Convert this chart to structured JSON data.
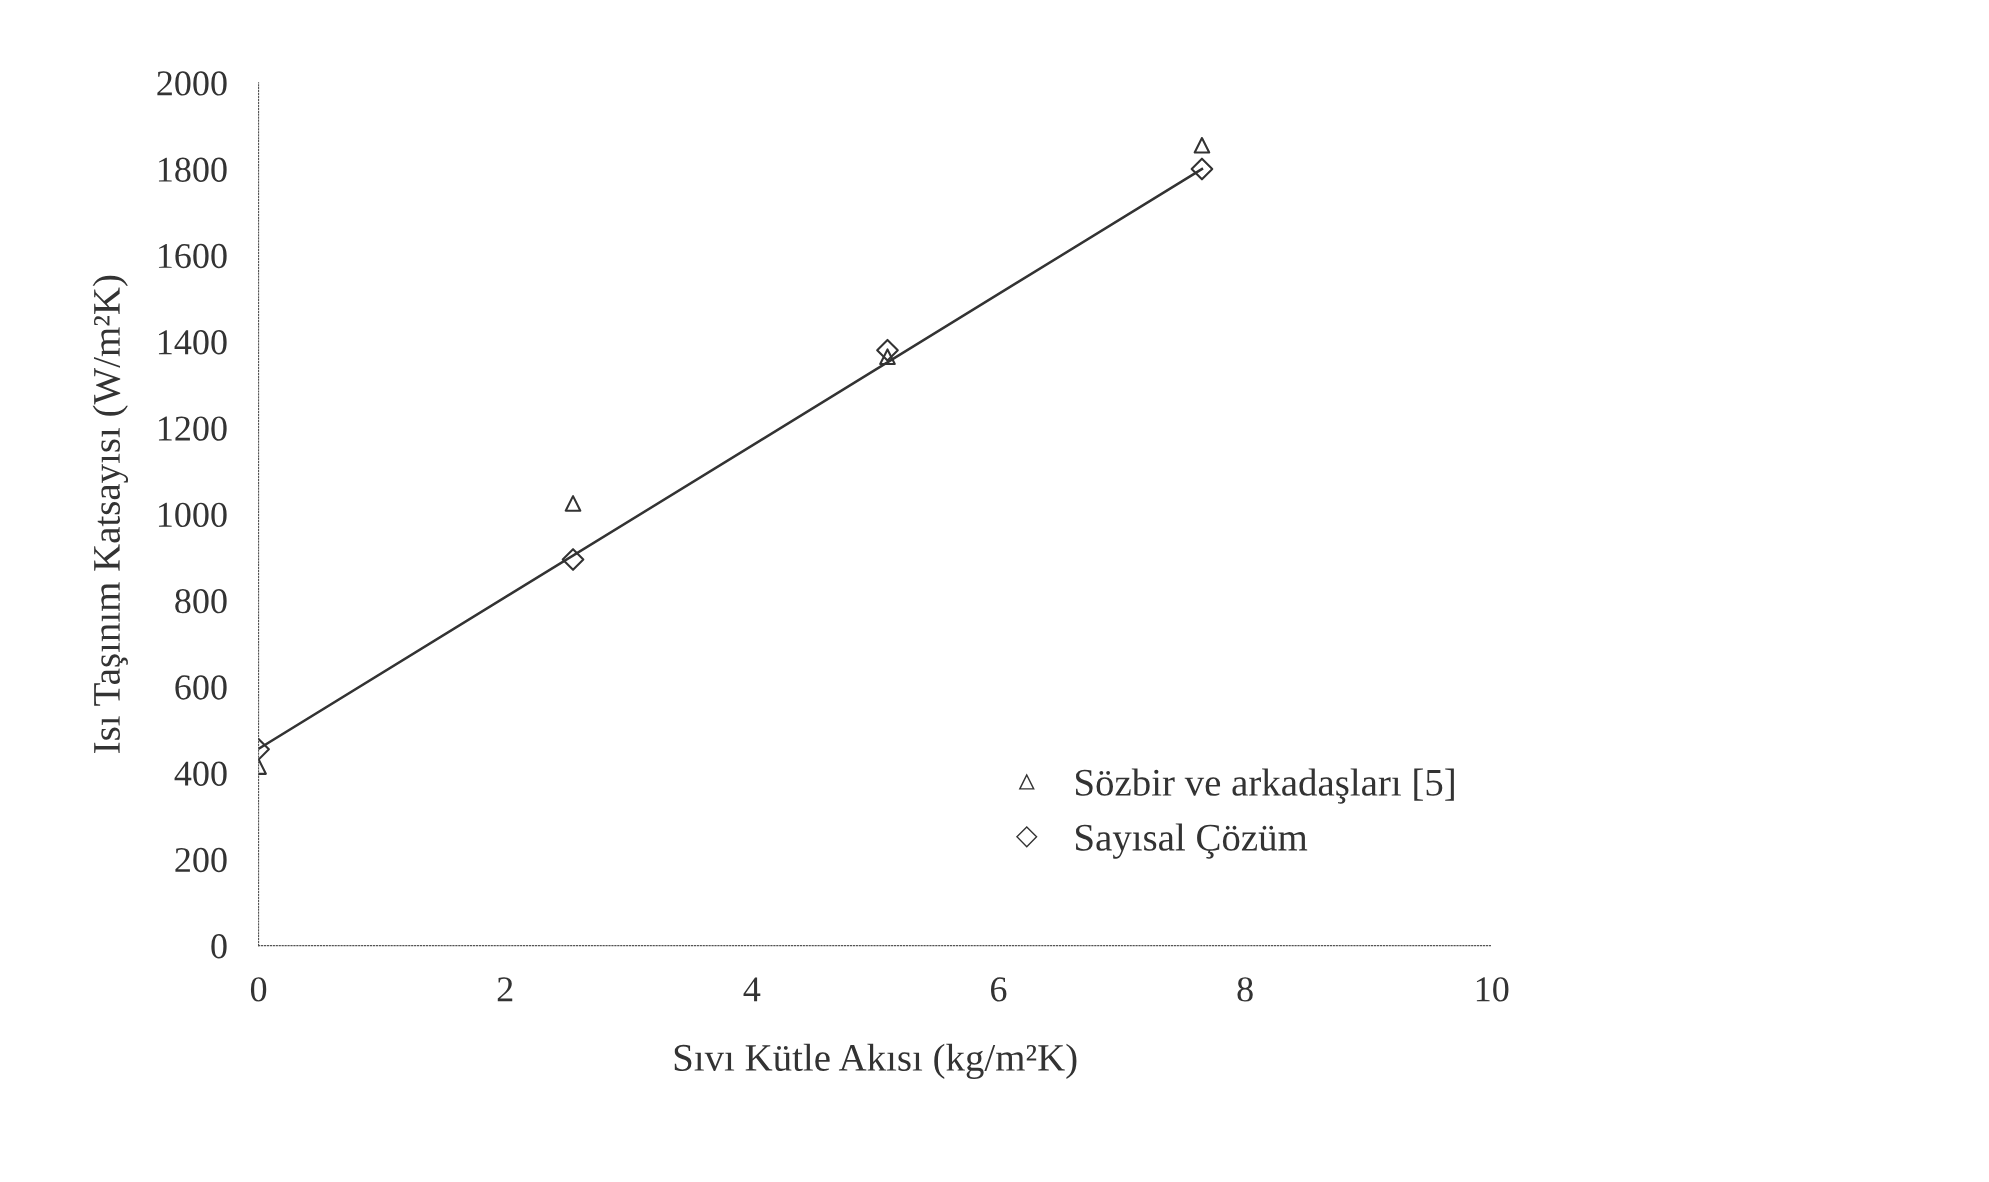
{
  "chart_data": {
    "type": "scatter",
    "xlabel": "Sıvı Kütle Akısı (kg/m²K)",
    "ylabel": "Isı Taşınım Katsayısı (W/m²K)",
    "xlim": [
      0,
      10
    ],
    "xticks": [
      0,
      2,
      4,
      6,
      8,
      10
    ],
    "ylim": [
      0,
      2000
    ],
    "yticks": [
      0,
      200,
      400,
      600,
      800,
      1000,
      1200,
      1400,
      1600,
      1800,
      2000
    ],
    "grid": false,
    "legend": "bottom right",
    "series": [
      {
        "name": "Sözbir ve arkadaşları [5]",
        "color": "#333333",
        "marker": "triangle",
        "x": [
          0,
          2.55,
          5.1,
          7.65
        ],
        "values": [
          415,
          1025,
          1365,
          1855
        ]
      },
      {
        "name": "Sayısal Çözüm",
        "color": "#333333",
        "marker": "diamond",
        "x": [
          0,
          2.55,
          5.1,
          7.65
        ],
        "values": [
          455,
          895,
          1380,
          1800
        ]
      },
      {
        "type": "line",
        "color": "#333333",
        "marker": "none",
        "line_style": "solid",
        "x": [
          0,
          7.65
        ],
        "values": [
          456,
          1800
        ]
      }
    ]
  }
}
